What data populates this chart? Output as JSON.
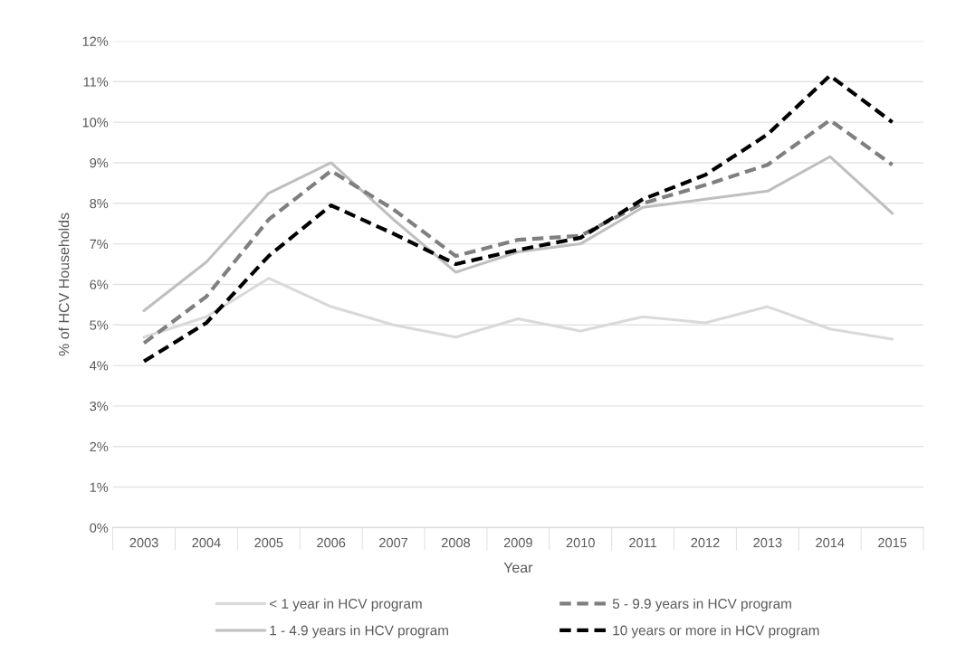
{
  "chart_data": {
    "type": "line",
    "xlabel": "Year",
    "ylabel": "% of HCV Households",
    "categories": [
      "2003",
      "2004",
      "2005",
      "2006",
      "2007",
      "2008",
      "2009",
      "2010",
      "2011",
      "2012",
      "2013",
      "2014",
      "2015"
    ],
    "series": [
      {
        "name": "< 1 year in HCV program",
        "color": "#d9d9d9",
        "line_style": "solid",
        "values": [
          4.7,
          5.2,
          6.15,
          5.45,
          5.0,
          4.7,
          5.15,
          4.85,
          5.2,
          5.05,
          5.45,
          4.9,
          4.65
        ]
      },
      {
        "name": "1 - 4.9 years in HCV program",
        "color": "#bfbfbf",
        "line_style": "solid",
        "values": [
          5.35,
          6.55,
          8.25,
          9.0,
          7.6,
          6.3,
          6.8,
          7.0,
          7.9,
          8.1,
          8.3,
          9.15,
          7.75
        ]
      },
      {
        "name": "5 - 9.9 years in HCV program",
        "color": "#7f7f7f",
        "line_style": "dashed",
        "values": [
          4.55,
          5.7,
          7.6,
          8.8,
          7.85,
          6.7,
          7.1,
          7.2,
          8.0,
          8.45,
          8.95,
          10.05,
          8.95
        ]
      },
      {
        "name": "10 years or more in HCV program",
        "color": "#000000",
        "line_style": "dashed",
        "values": [
          4.1,
          5.05,
          6.7,
          7.95,
          7.25,
          6.5,
          6.85,
          7.15,
          8.1,
          8.7,
          9.7,
          11.15,
          10.0
        ]
      }
    ],
    "ylim": [
      0,
      12
    ],
    "yticks": [
      {
        "value": 0,
        "label": "0%"
      },
      {
        "value": 1,
        "label": "1%"
      },
      {
        "value": 2,
        "label": "2%"
      },
      {
        "value": 3,
        "label": "3%"
      },
      {
        "value": 4,
        "label": "4%"
      },
      {
        "value": 5,
        "label": "5%"
      },
      {
        "value": 6,
        "label": "6%"
      },
      {
        "value": 7,
        "label": "7%"
      },
      {
        "value": 8,
        "label": "8%"
      },
      {
        "value": 9,
        "label": "9%"
      },
      {
        "value": 10,
        "label": "10%"
      },
      {
        "value": 11,
        "label": "11%"
      },
      {
        "value": 12,
        "label": "12%"
      }
    ],
    "grid": "y",
    "legend": "bottom",
    "marker": "none"
  }
}
